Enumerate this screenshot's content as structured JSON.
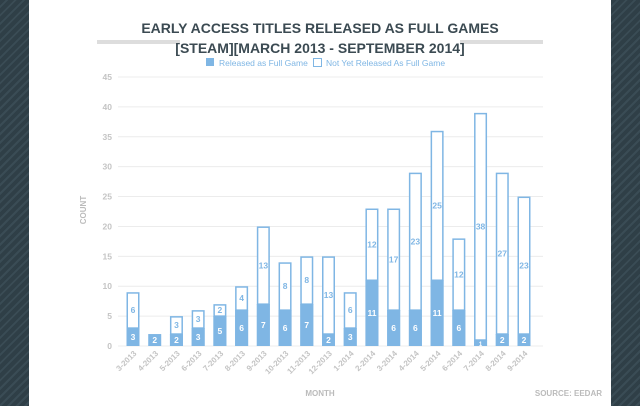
{
  "chart_data": {
    "type": "bar",
    "stacked": true,
    "title": "EARLY ACCESS TITLES RELEASED AS FULL GAMES",
    "subtitle": "[STEAM][MARCH 2013 - SEPTEMBER 2014]",
    "xlabel": "MONTH",
    "ylabel": "COUNT",
    "source": "SOURCE: EEDAR",
    "ylim": [
      0,
      45
    ],
    "yticks": [
      0,
      5,
      10,
      15,
      20,
      25,
      30,
      35,
      40,
      45
    ],
    "grid": true,
    "legend_position": "top-center",
    "categories": [
      "3-2013",
      "4-2013",
      "5-2013",
      "6-2013",
      "7-2013",
      "8-2013",
      "9-2013",
      "10-2013",
      "11-2013",
      "12-2013",
      "1-2014",
      "2-2014",
      "3-2014",
      "4-2014",
      "5-2014",
      "6-2014",
      "7-2014",
      "8-2014",
      "9-2014"
    ],
    "series": [
      {
        "name": "Released as Full Game",
        "color": "#7fb6e4",
        "fill": "solid",
        "values": [
          3,
          2,
          2,
          3,
          5,
          6,
          7,
          6,
          7,
          2,
          3,
          11,
          6,
          6,
          11,
          6,
          1,
          2,
          2
        ]
      },
      {
        "name": "Not Yet Released As Full Game",
        "color": "#7fb6e4",
        "fill": "outline",
        "values": [
          6,
          0,
          3,
          3,
          2,
          4,
          13,
          8,
          8,
          13,
          6,
          12,
          17,
          23,
          25,
          12,
          38,
          27,
          23
        ]
      }
    ]
  }
}
